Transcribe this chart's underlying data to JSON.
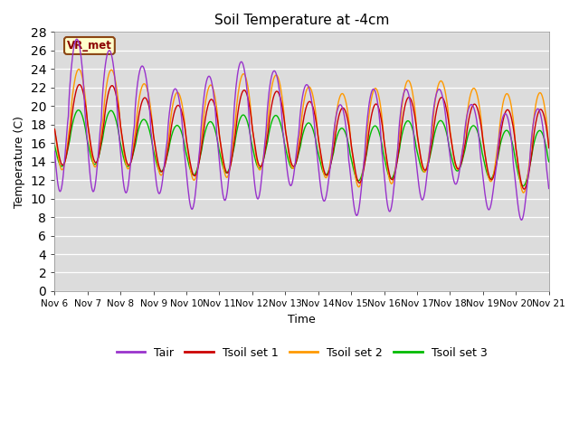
{
  "title": "Soil Temperature at -4cm",
  "xlabel": "Time",
  "ylabel": "Temperature (C)",
  "ylim": [
    0,
    28
  ],
  "yticks": [
    0,
    2,
    4,
    6,
    8,
    10,
    12,
    14,
    16,
    18,
    20,
    22,
    24,
    26,
    28
  ],
  "xtick_labels": [
    "Nov 6",
    "Nov 7",
    "Nov 8",
    "Nov 9",
    "Nov 10",
    "Nov 11",
    "Nov 12",
    "Nov 13",
    "Nov 14",
    "Nov 15",
    "Nov 16",
    "Nov 17",
    "Nov 18",
    "Nov 19",
    "Nov 20",
    "Nov 21"
  ],
  "colors": {
    "Tair": "#9933CC",
    "Tsoil1": "#CC0000",
    "Tsoil2": "#FF9900",
    "Tsoil3": "#00BB00"
  },
  "legend_labels": [
    "Tair",
    "Tsoil set 1",
    "Tsoil set 2",
    "Tsoil set 3"
  ],
  "annotation_text": "VR_met",
  "fig_bg_color": "#FFFFFF",
  "plot_bg_color": "#DCDCDC",
  "grid_color": "#FFFFFF",
  "linewidth": 1.0
}
